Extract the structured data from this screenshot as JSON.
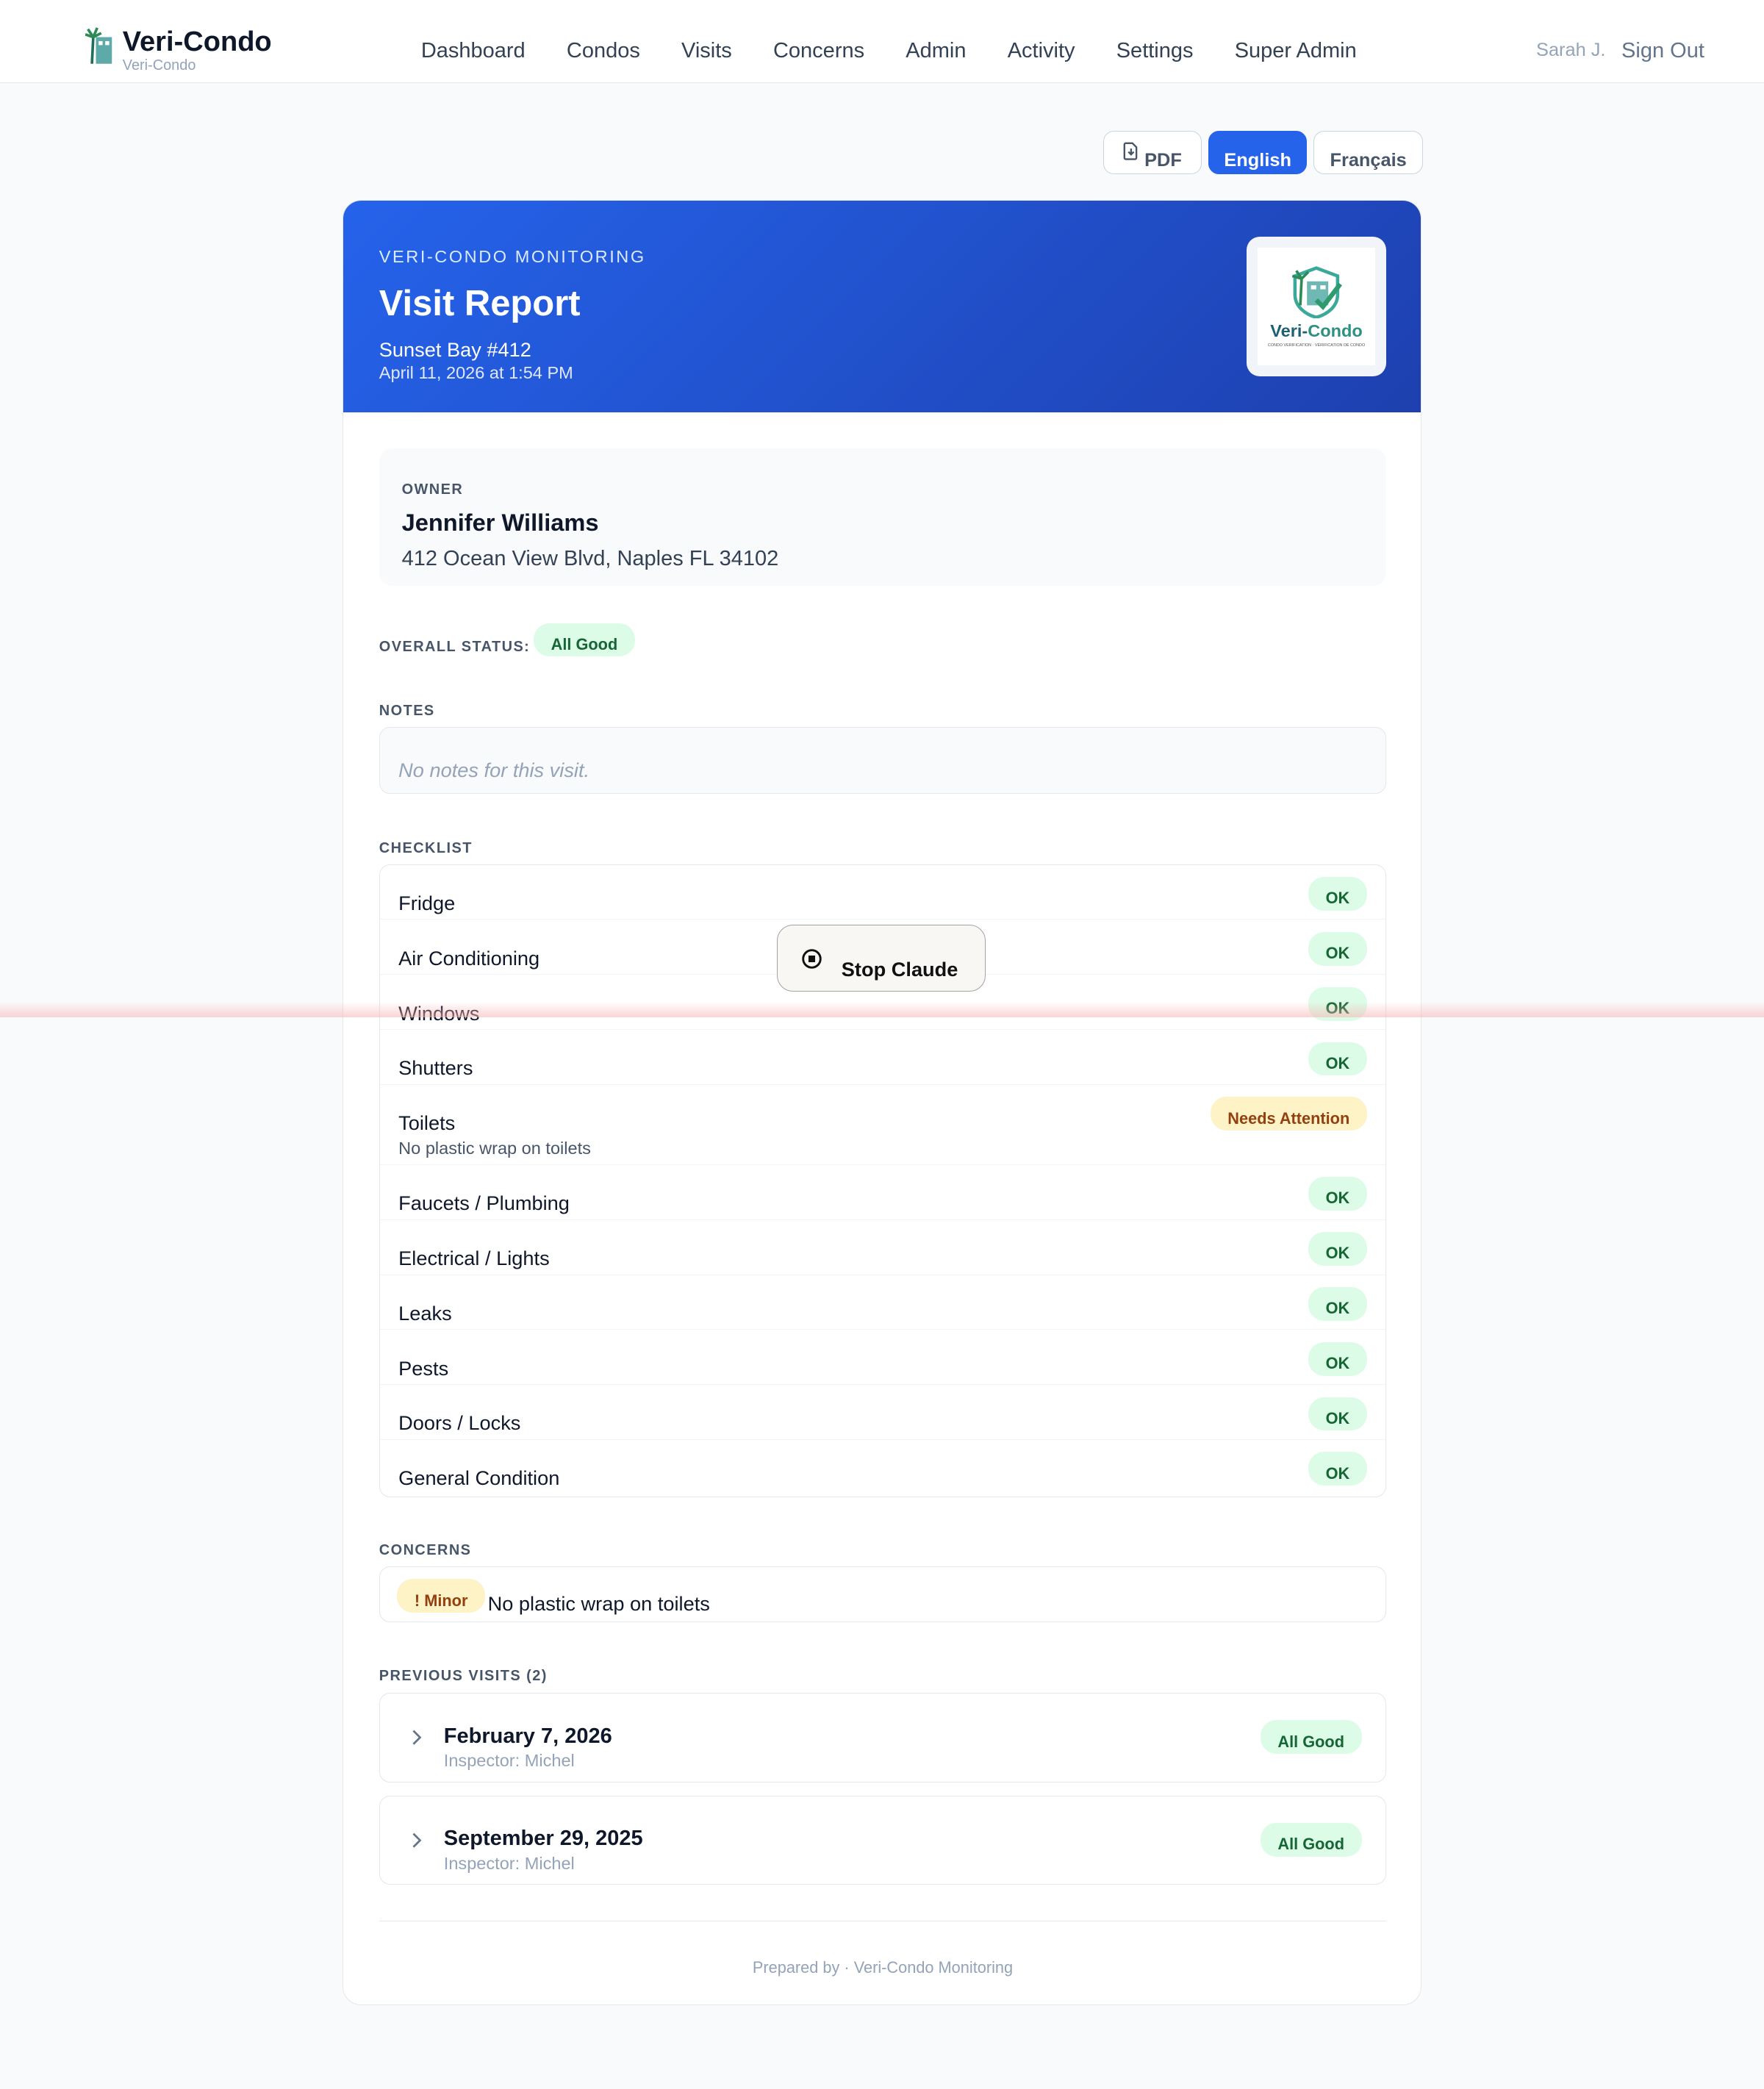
{
  "app": {
    "title": "Veri-Condo",
    "subtitle": "Veri-Condo"
  },
  "nav": [
    "Dashboard",
    "Condos",
    "Visits",
    "Concerns",
    "Admin",
    "Activity",
    "Settings",
    "Super Admin"
  ],
  "user": {
    "name": "Sarah J.",
    "sign_out": "Sign Out"
  },
  "toolbar": {
    "pdf": "PDF",
    "english": "English",
    "french": "Français",
    "active_language": "English"
  },
  "report": {
    "kicker": "VERI-CONDO MONITORING",
    "title": "Visit Report",
    "condo": "Sunset Bay #412",
    "date": "April 11, 2026 at 1:54 PM",
    "logo_text": "Veri-Condo",
    "logo_tagline": "CONDO VERIFICATION · VÉRIFICATION DE CONDO"
  },
  "owner": {
    "label": "OWNER",
    "name": "Jennifer Williams",
    "address": "412 Ocean View Blvd, Naples FL 34102"
  },
  "status": {
    "label": "OVERALL STATUS:",
    "value": "All Good"
  },
  "notes": {
    "label": "NOTES",
    "value": "No notes for this visit."
  },
  "checklist": {
    "label": "CHECKLIST",
    "items": [
      {
        "name": "Fridge",
        "status": "OK"
      },
      {
        "name": "Air Conditioning",
        "status": "OK"
      },
      {
        "name": "Windows",
        "status": "OK"
      },
      {
        "name": "Shutters",
        "status": "OK"
      },
      {
        "name": "Toilets",
        "status": "Needs Attention",
        "note": "No plastic wrap on toilets"
      },
      {
        "name": "Faucets / Plumbing",
        "status": "OK"
      },
      {
        "name": "Electrical / Lights",
        "status": "OK"
      },
      {
        "name": "Leaks",
        "status": "OK"
      },
      {
        "name": "Pests",
        "status": "OK"
      },
      {
        "name": "Doors / Locks",
        "status": "OK"
      },
      {
        "name": "General Condition",
        "status": "OK"
      }
    ]
  },
  "concerns": {
    "label": "CONCERNS",
    "items": [
      {
        "severity": "! Minor",
        "text": "No plastic wrap on toilets"
      }
    ]
  },
  "previous": {
    "label": "PREVIOUS VISITS (2)",
    "items": [
      {
        "date": "February 7, 2026",
        "inspector": "Inspector: Michel",
        "status": "All Good"
      },
      {
        "date": "September 29, 2025",
        "inspector": "Inspector: Michel",
        "status": "All Good"
      }
    ]
  },
  "footer": "Prepared by · Veri-Condo Monitoring",
  "overlay": {
    "stop": "Stop Claude"
  },
  "colors": {
    "accent": "#2563eb",
    "ok_bg": "#dcfce7",
    "ok_text": "#166534",
    "warn_bg": "#fef3c7",
    "warn_text": "#92400e"
  }
}
